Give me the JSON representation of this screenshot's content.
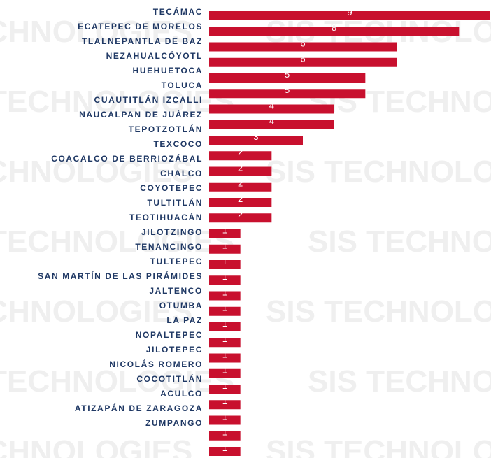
{
  "watermark": "SIS TECHNOLOGIES",
  "chart_data": {
    "type": "bar",
    "orientation": "horizontal",
    "color": "#c8102e",
    "categories": [
      "TECÁMAC",
      "ECATEPEC DE MORELOS",
      "TLALNEPANTLA DE BAZ",
      "NEZAHUALCÓYOTL",
      "HUEHUETOCA",
      "TOLUCA",
      "CUAUTITLÁN IZCALLI",
      "NAUCALPAN DE JUÁREZ",
      "TEPOTZOTLÁN",
      "TEXCOCO",
      "COACALCO DE BERRIOZÁBAL",
      "CHALCO",
      "COYOTEPEC",
      "TULTITLÁN",
      "TEOTIHUACÁN",
      "JILOTZINGO",
      "TENANCINGO",
      "TULTEPEC",
      "SAN MARTÍN DE LAS PIRÁMIDES",
      "JALTENCO",
      "OTUMBA",
      "LA PAZ",
      "NOPALTEPEC",
      "JILOTEPEC",
      "NICOLÁS ROMERO",
      "COCOTITLÁN",
      "ACULCO",
      "ATIZAPÁN DE ZARAGOZA",
      "ZUMPANGO"
    ],
    "values": [
      9,
      8,
      6,
      6,
      5,
      5,
      4,
      4,
      3,
      2,
      2,
      2,
      2,
      2,
      1,
      1,
      1,
      1,
      1,
      1,
      1,
      1,
      1,
      1,
      1,
      1,
      1,
      1,
      1
    ],
    "xlim": [
      0,
      9
    ]
  }
}
